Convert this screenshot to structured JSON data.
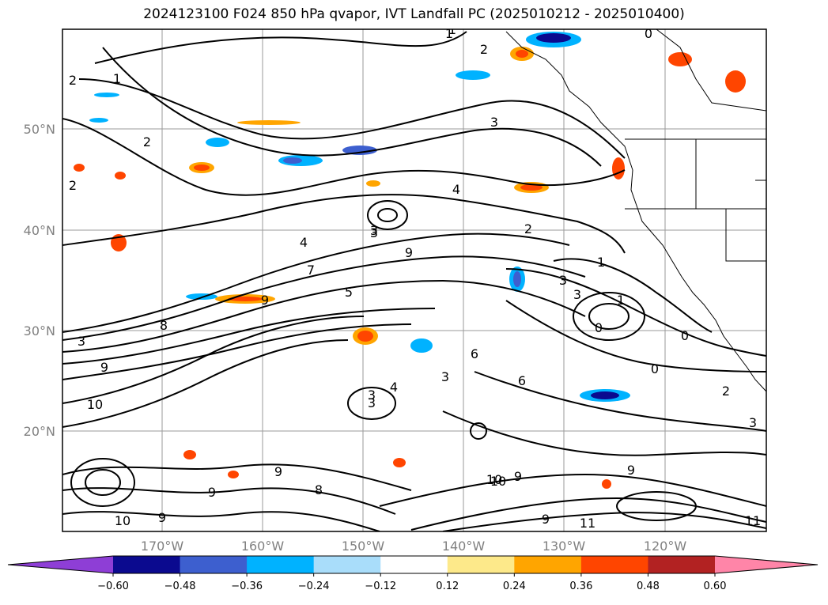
{
  "title": "2024123100 F024 850 hPa qvapor, IVT Landfall PC (2025010212 - 2025010400)",
  "lat_labels": [
    "50°N",
    "40°N",
    "30°N",
    "20°N"
  ],
  "lon_labels": [
    "170°W",
    "160°W",
    "150°W",
    "140°W",
    "130°W",
    "120°W"
  ],
  "colorbar": {
    "colors": [
      "#8e3ed6",
      "#0b0a8f",
      "#3d5fcf",
      "#00b2ff",
      "#a9ddfa",
      "#ffffff",
      "#fde98a",
      "#ffa500",
      "#ff4500",
      "#b22222",
      "#ff85a8"
    ],
    "ticks": [
      "−0.60",
      "−0.48",
      "−0.36",
      "−0.24",
      "−0.12",
      "0.12",
      "0.24",
      "0.36",
      "0.48",
      "0.60"
    ]
  },
  "contour_labels": [
    "1",
    "2",
    "2",
    "3",
    "1",
    "2",
    "2",
    "4",
    "2",
    "3",
    "4",
    "3",
    "9",
    "7",
    "9",
    "5",
    "3",
    "8",
    "3",
    "6",
    "9",
    "3",
    "4",
    "3",
    "1",
    "6",
    "3",
    "0",
    "0",
    "1",
    "0",
    "9",
    "11",
    "10",
    "9",
    "9",
    "10",
    "9",
    "2",
    "3",
    "10",
    "9",
    "8",
    "3",
    "9",
    "10",
    "11",
    "1",
    "0"
  ]
}
